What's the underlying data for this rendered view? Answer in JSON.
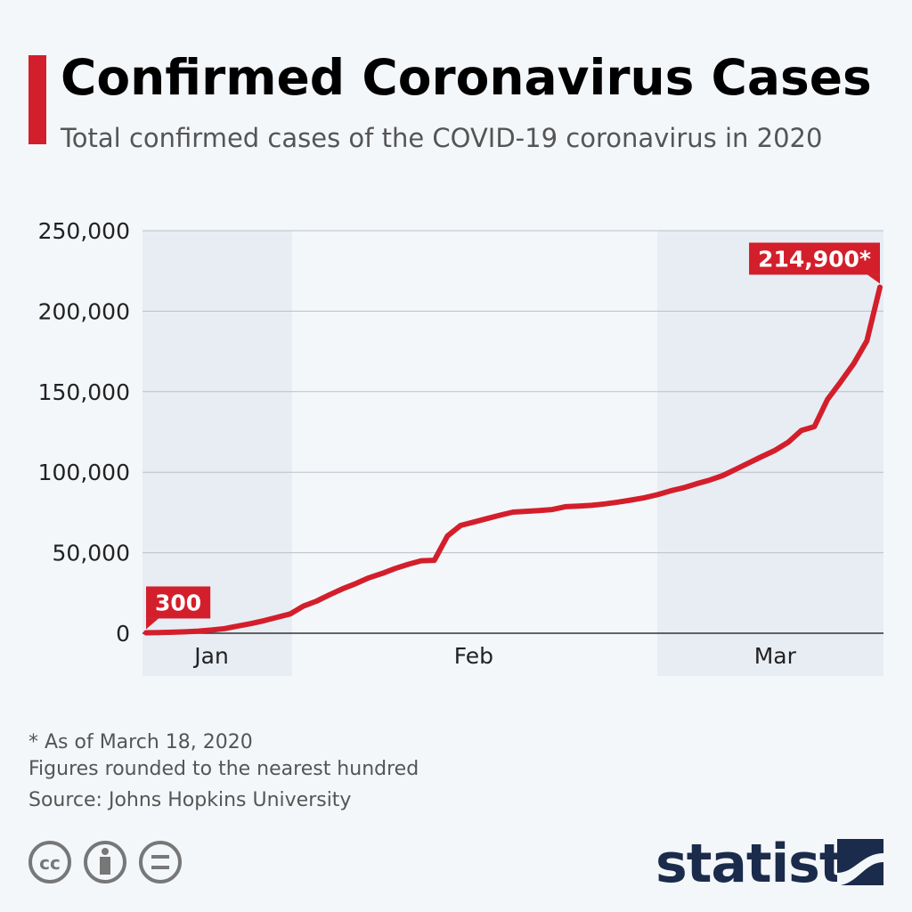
{
  "chart_data": {
    "type": "line",
    "title": "Confirmed Coronavirus Cases",
    "subtitle": "Total confirmed cases of the COVID-19 coronavirus in 2020",
    "categories": [
      null,
      null,
      null,
      null,
      null,
      "Jan",
      null,
      null,
      null,
      null,
      null,
      null,
      null,
      null,
      null,
      null,
      null,
      null,
      null,
      null,
      null,
      null,
      null,
      null,
      null,
      "Feb",
      null,
      null,
      null,
      null,
      null,
      null,
      null,
      null,
      null,
      null,
      null,
      null,
      null,
      null,
      null,
      null,
      null,
      null,
      null,
      null,
      null,
      null,
      "Mar",
      null,
      null,
      null,
      null,
      null,
      null,
      null,
      null
    ],
    "values": [
      300,
      400,
      600,
      900,
      1300,
      2000,
      2900,
      4500,
      6000,
      7800,
      9900,
      12000,
      16800,
      19900,
      23900,
      27600,
      30800,
      34400,
      37100,
      40200,
      42800,
      45000,
      45300,
      60400,
      66900,
      69000,
      71200,
      73300,
      75200,
      75700,
      76200,
      76800,
      78600,
      78900,
      79400,
      80300,
      81400,
      82700,
      84100,
      86000,
      88400,
      90300,
      92800,
      95100,
      97900,
      101800,
      105800,
      109800,
      113600,
      118600,
      125900,
      128300,
      145200,
      156100,
      167400,
      181500,
      214900
    ],
    "value_labels": [
      "300",
      null,
      null,
      null,
      null,
      null,
      null,
      null,
      null,
      null,
      null,
      null,
      null,
      null,
      null,
      null,
      null,
      null,
      null,
      null,
      null,
      null,
      null,
      null,
      null,
      null,
      null,
      null,
      null,
      null,
      null,
      null,
      null,
      null,
      null,
      null,
      null,
      null,
      null,
      null,
      null,
      null,
      null,
      null,
      null,
      null,
      null,
      null,
      null,
      null,
      null,
      null,
      null,
      null,
      null,
      null,
      "214,900*"
    ],
    "color": "#d31f2b",
    "ylim": [
      0,
      250000
    ],
    "yticks": [
      0,
      {
        "value": 50000,
        "label": "50,000"
      },
      {
        "value": 100000,
        "label": "100,000"
      },
      {
        "value": 150000,
        "label": "150,000"
      },
      {
        "value": 200000,
        "label": "200,000"
      },
      {
        "value": 250000,
        "label": "250,000"
      }
    ],
    "grid": true,
    "notes": [
      "* As of March 18, 2020",
      "Figures rounded to the nearest hundred",
      "Source: Johns Hopkins University"
    ],
    "license_icon": "cc",
    "brand": "statista"
  }
}
